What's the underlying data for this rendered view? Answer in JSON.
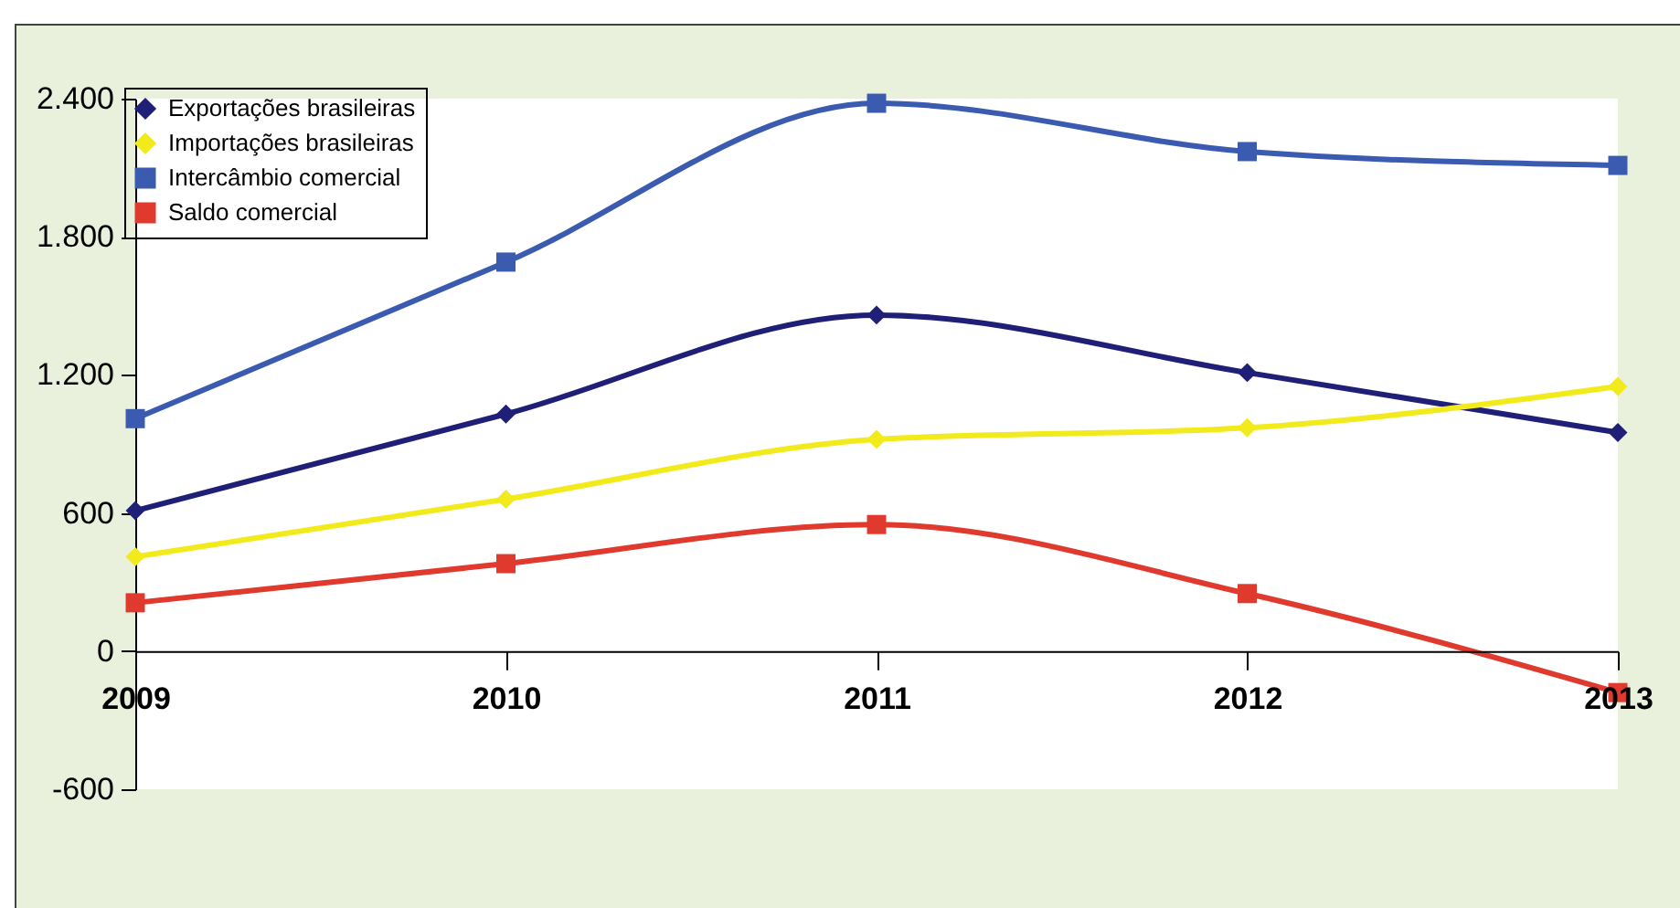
{
  "chart_data": {
    "type": "line",
    "categories": [
      "2009",
      "2010",
      "2011",
      "2012",
      "2013"
    ],
    "series": [
      {
        "name": "Exportações brasileiras",
        "color": "#1f1f77",
        "marker": "diamond",
        "values": [
          610,
          1030,
          1460,
          1210,
          950
        ]
      },
      {
        "name": "Importações brasileiras",
        "color": "#f2ea1a",
        "marker": "diamond",
        "values": [
          410,
          660,
          920,
          970,
          1150
        ]
      },
      {
        "name": "Intercâmbio  comercial",
        "color": "#3a5bb0",
        "marker": "square",
        "values": [
          1010,
          1690,
          2380,
          2170,
          2110
        ]
      },
      {
        "name": "Saldo comercial",
        "color": "#e03a2e",
        "marker": "square",
        "values": [
          210,
          380,
          550,
          250,
          -180
        ]
      }
    ],
    "ylim": [
      -600,
      2400
    ],
    "yticks": [
      {
        "value": -600,
        "label": "-600"
      },
      {
        "value": 0,
        "label": "0"
      },
      {
        "value": 600,
        "label": "600"
      },
      {
        "value": 1200,
        "label": "1.200"
      },
      {
        "value": 1800,
        "label": "1.800"
      },
      {
        "value": 2400,
        "label": "2.400"
      }
    ],
    "grid": false,
    "legend": "top left",
    "line_style": "solid"
  }
}
